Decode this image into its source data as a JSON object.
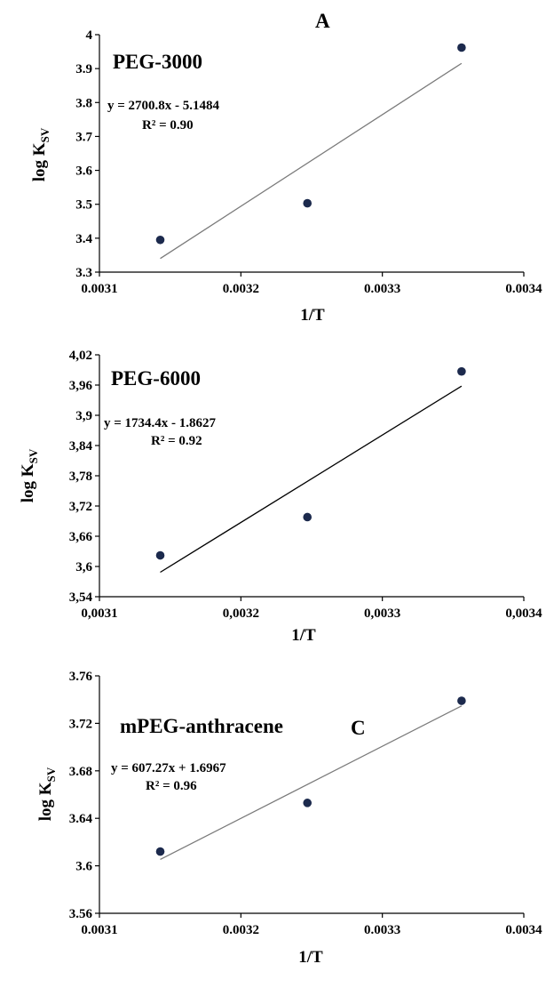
{
  "chart_data": [
    {
      "type": "scatter",
      "panel_letter": "A",
      "title": "PEG-3000",
      "xlabel": "1/T",
      "ylabel": "log K",
      "ylabel_sub": "SV",
      "xlim": [
        0.0031,
        0.0034
      ],
      "ylim": [
        3.3,
        4.0
      ],
      "x_ticks": [
        0.0031,
        0.0032,
        0.0033,
        0.0034
      ],
      "x_tick_labels": [
        "0.0031",
        "0.0032",
        "0.0033",
        "0.0034"
      ],
      "y_ticks": [
        3.3,
        3.4,
        3.5,
        3.6,
        3.7,
        3.8,
        3.9,
        4.0
      ],
      "y_tick_labels": [
        "3.3",
        "3.4",
        "3.5",
        "3.6",
        "3.7",
        "3.8",
        "3.9",
        "4"
      ],
      "points": [
        {
          "x": 0.003143,
          "y": 3.395
        },
        {
          "x": 0.003247,
          "y": 3.503
        },
        {
          "x": 0.003356,
          "y": 3.962
        }
      ],
      "trendline": {
        "slope": 2700.8,
        "intercept": -5.1484
      },
      "equation": "y = 2700.8x - 5.1484",
      "r2": "R² = 0.90",
      "grid": false,
      "colors": {
        "marker": "#1c2a4d",
        "trend": "#7a7a7a"
      }
    },
    {
      "type": "scatter",
      "panel_letter": "",
      "title": "PEG-6000",
      "xlabel": "1/T",
      "ylabel": "log K",
      "ylabel_sub": "SV",
      "xlim": [
        0.0031,
        0.0034
      ],
      "ylim": [
        3.54,
        4.02
      ],
      "x_ticks": [
        0.0031,
        0.0032,
        0.0033,
        0.0034
      ],
      "x_tick_labels": [
        "0,0031",
        "0,0032",
        "0,0033",
        "0,0034"
      ],
      "y_ticks": [
        3.54,
        3.6,
        3.66,
        3.72,
        3.78,
        3.84,
        3.9,
        3.96,
        4.02
      ],
      "y_tick_labels": [
        "3,54",
        "3,6",
        "3,66",
        "3,72",
        "3,78",
        "3,84",
        "3,9",
        "3,96",
        "4,02"
      ],
      "points": [
        {
          "x": 0.003143,
          "y": 3.622
        },
        {
          "x": 0.003247,
          "y": 3.698
        },
        {
          "x": 0.003356,
          "y": 3.987
        }
      ],
      "trendline": {
        "slope": 1734.4,
        "intercept": -1.8627
      },
      "equation": "y = 1734.4x - 1.8627",
      "r2": "R² = 0.92",
      "grid": false,
      "colors": {
        "marker": "#1c2a4d",
        "trend": "#000000"
      }
    },
    {
      "type": "scatter",
      "panel_letter": "C",
      "title": "mPEG-anthracene",
      "xlabel": "1/T",
      "ylabel": "log K",
      "ylabel_sub": "SV",
      "xlim": [
        0.0031,
        0.0034
      ],
      "ylim": [
        3.56,
        3.76
      ],
      "x_ticks": [
        0.0031,
        0.0032,
        0.0033,
        0.0034
      ],
      "x_tick_labels": [
        "0.0031",
        "0.0032",
        "0.0033",
        "0.0034"
      ],
      "y_ticks": [
        3.56,
        3.6,
        3.64,
        3.68,
        3.72,
        3.76
      ],
      "y_tick_labels": [
        "3.56",
        "3.6",
        "3.64",
        "3.68",
        "3.72",
        "3.76"
      ],
      "points": [
        {
          "x": 0.003143,
          "y": 3.612
        },
        {
          "x": 0.003247,
          "y": 3.653
        },
        {
          "x": 0.003356,
          "y": 3.739
        }
      ],
      "trendline": {
        "slope": 607.27,
        "intercept": 1.6967
      },
      "equation": "y = 607.27x + 1.6967",
      "r2": "R² = 0.96",
      "grid": false,
      "colors": {
        "marker": "#1c2a4d",
        "trend": "#7a7a7a"
      }
    }
  ]
}
